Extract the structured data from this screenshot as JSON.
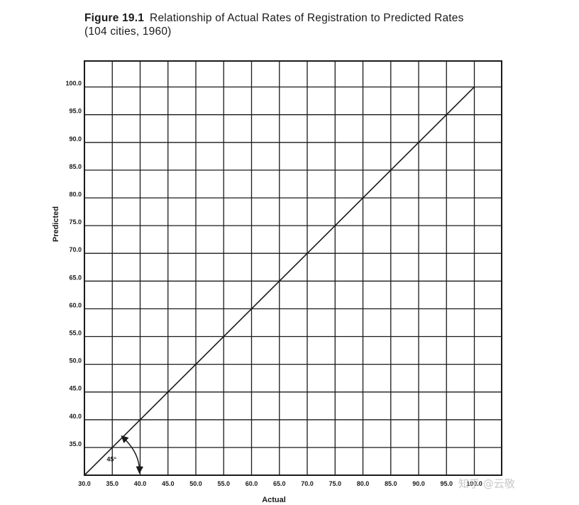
{
  "caption": {
    "figure_label": "Figure 19.1",
    "title_line1": "Relationship of Actual Rates of Registration to Predicted Rates",
    "title_line2": "(104 cities, 1960)"
  },
  "chart_data": {
    "type": "line",
    "xlabel": "Actual",
    "ylabel": "Predicted",
    "xlim": [
      30,
      100
    ],
    "ylim": [
      30,
      105
    ],
    "x_ticks": [
      "30.0",
      "35.0",
      "40.0",
      "45.0",
      "50.0",
      "55.0",
      "60.0",
      "65.0",
      "70.0",
      "75.0",
      "80.0",
      "85.0",
      "90.0",
      "95.0",
      "100.0"
    ],
    "y_ticks": [
      "35.0",
      "40.0",
      "45.0",
      "50.0",
      "55.0",
      "60.0",
      "65.0",
      "70.0",
      "75.0",
      "80.0",
      "85.0",
      "90.0",
      "95.0",
      "100.0"
    ],
    "grid": true,
    "series": [
      {
        "x": [
          30,
          100
        ],
        "y": [
          30,
          100
        ]
      }
    ],
    "annotations": [
      {
        "text": "45°",
        "x": 34.5,
        "y": 32.5
      }
    ]
  },
  "watermark": "知乎 @云敬"
}
